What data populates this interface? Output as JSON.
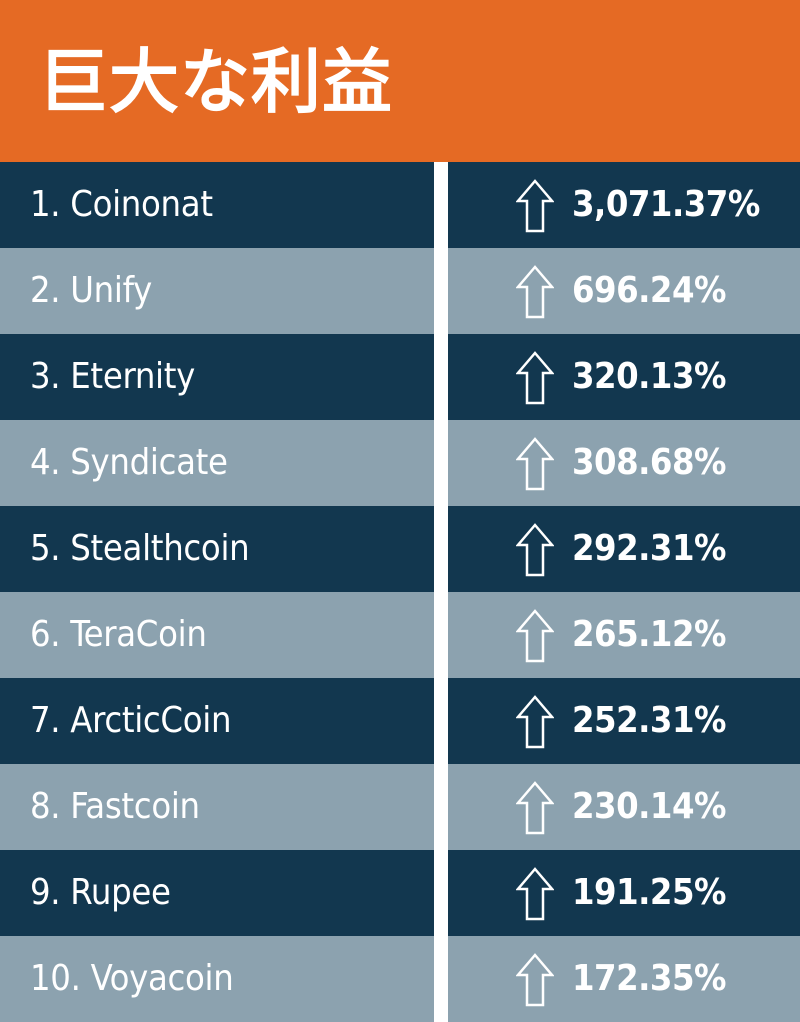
{
  "title": "巨大な利益",
  "colors": {
    "header": "#E56A24",
    "row_dark": "#12374F",
    "row_light": "#8CA2AF",
    "text": "#FFFFFF"
  },
  "rows": [
    {
      "name": "1. Coinonat",
      "value": "3,071.37%",
      "icon": "up-arrow-icon"
    },
    {
      "name": "2. Unify",
      "value": "696.24%",
      "icon": "up-arrow-icon"
    },
    {
      "name": "3. Eternity",
      "value": "320.13%",
      "icon": "up-arrow-icon"
    },
    {
      "name": "4. Syndicate",
      "value": "308.68%",
      "icon": "up-arrow-icon"
    },
    {
      "name": "5. Stealthcoin",
      "value": "292.31%",
      "icon": "up-arrow-icon"
    },
    {
      "name": "6. TeraCoin",
      "value": "265.12%",
      "icon": "up-arrow-icon"
    },
    {
      "name": "7. ArcticCoin",
      "value": "252.31%",
      "icon": "up-arrow-icon"
    },
    {
      "name": "8. Fastcoin",
      "value": "230.14%",
      "icon": "up-arrow-icon"
    },
    {
      "name": "9. Rupee",
      "value": "191.25%",
      "icon": "up-arrow-icon"
    },
    {
      "name": "10. Voyacoin",
      "value": "172.35%",
      "icon": "up-arrow-icon"
    }
  ]
}
